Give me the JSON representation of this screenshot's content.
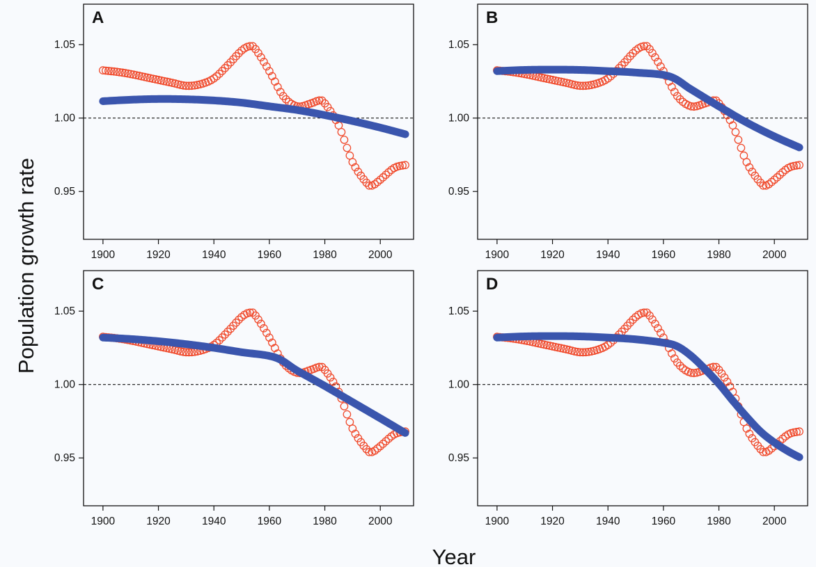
{
  "chart_data": {
    "type": "line",
    "xlabel": "Year",
    "ylabel": "Population growth rate",
    "xlim": [
      1893,
      2012
    ],
    "ylim": [
      0.9174,
      1.0776
    ],
    "x_ticks": [
      1900,
      1920,
      1940,
      1960,
      1980,
      2000
    ],
    "y_ticks": [
      0.95,
      1.0,
      1.05
    ],
    "y_tick_labels": [
      "0.95",
      "1.00",
      "1.05"
    ],
    "reference_line": {
      "y": 1.0,
      "style": "dashed"
    },
    "colors": {
      "observed": "#f04a2c",
      "fitted": "#3a55ad"
    },
    "observed": {
      "marker": "open-circle",
      "x": [
        1900,
        1905,
        1910,
        1915,
        1920,
        1925,
        1930,
        1935,
        1940,
        1945,
        1950,
        1953,
        1955,
        1960,
        1965,
        1970,
        1975,
        1978,
        1980,
        1985,
        1990,
        1995,
        1997,
        2000,
        2005,
        2009
      ],
      "y": [
        1.0325,
        1.0315,
        1.03,
        1.028,
        1.026,
        1.024,
        1.022,
        1.023,
        1.027,
        1.036,
        1.046,
        1.049,
        1.047,
        1.032,
        1.015,
        1.008,
        1.01,
        1.012,
        1.01,
        0.995,
        0.97,
        0.956,
        0.954,
        0.958,
        0.966,
        0.968
      ]
    },
    "panels": [
      {
        "label": "A",
        "fitted": {
          "x": [
            1900,
            1910,
            1920,
            1930,
            1940,
            1950,
            1960,
            1970,
            1980,
            1990,
            2000,
            2009
          ],
          "y": [
            1.0115,
            1.0125,
            1.013,
            1.0128,
            1.012,
            1.0105,
            1.008,
            1.0055,
            1.002,
            0.998,
            0.9935,
            0.989
          ]
        }
      },
      {
        "label": "B",
        "fitted": {
          "x": [
            1900,
            1910,
            1920,
            1930,
            1940,
            1950,
            1962,
            1970,
            1980,
            1990,
            2000,
            2009
          ],
          "y": [
            1.032,
            1.0328,
            1.033,
            1.0328,
            1.032,
            1.031,
            1.0285,
            1.0195,
            1.008,
            0.997,
            0.9875,
            0.98
          ]
        }
      },
      {
        "label": "C",
        "fitted": {
          "x": [
            1900,
            1910,
            1920,
            1930,
            1940,
            1950,
            1962,
            1970,
            1980,
            1990,
            2000,
            2009
          ],
          "y": [
            1.032,
            1.031,
            1.0295,
            1.0275,
            1.025,
            1.022,
            1.0185,
            1.0095,
            0.999,
            0.988,
            0.977,
            0.967
          ]
        }
      },
      {
        "label": "D",
        "fitted": {
          "x": [
            1900,
            1910,
            1920,
            1930,
            1940,
            1950,
            1960,
            1965,
            1970,
            1975,
            1980,
            1985,
            1990,
            1995,
            2000,
            2005,
            2009
          ],
          "y": [
            1.032,
            1.0328,
            1.033,
            1.0328,
            1.032,
            1.0308,
            1.0285,
            1.026,
            1.0195,
            1.0105,
            1.0005,
            0.989,
            0.978,
            0.968,
            0.9605,
            0.9545,
            0.9505
          ]
        }
      }
    ]
  }
}
